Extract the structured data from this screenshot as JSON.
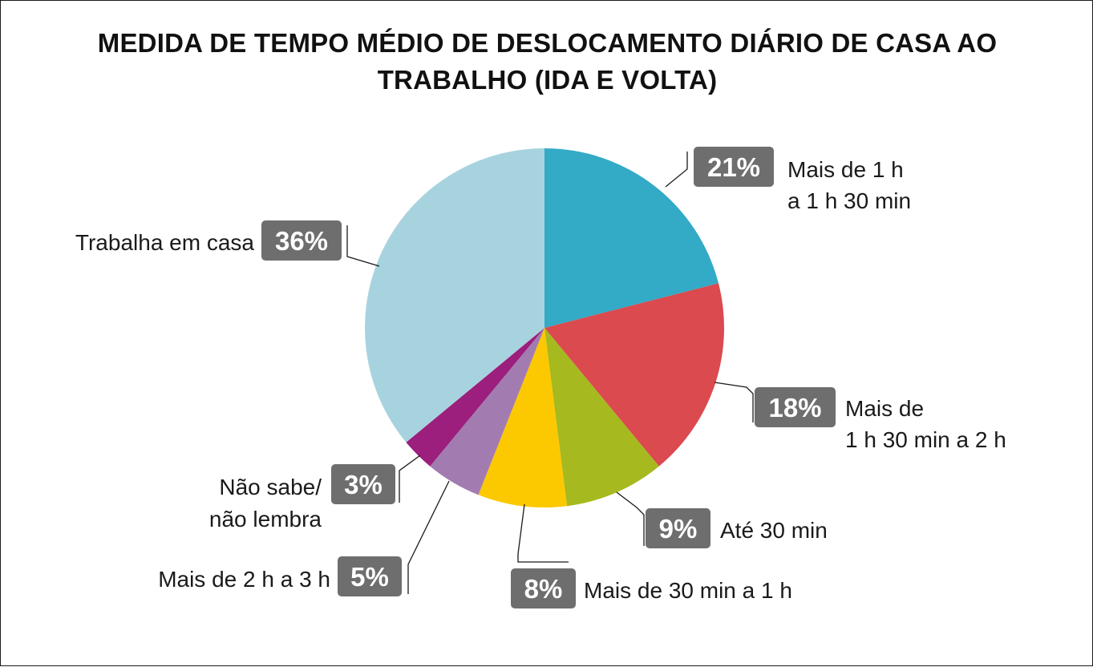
{
  "chart_data": {
    "type": "pie",
    "title_line1": "MEDIDA DE TEMPO MÉDIO DE DESLOCAMENTO DIÁRIO DE CASA AO",
    "title_line2": "TRABALHO (IDA E VOLTA)",
    "slices": [
      {
        "pct_label": "21%",
        "value": 21,
        "label_lines": [
          "Mais de 1 h",
          "a 1 h 30 min"
        ],
        "color": "#33aac6"
      },
      {
        "pct_label": "18%",
        "value": 18,
        "label_lines": [
          "Mais de",
          "1 h 30 min a 2 h"
        ],
        "color": "#da4a4f"
      },
      {
        "pct_label": "9%",
        "value": 9,
        "label_lines": [
          "Até 30 min"
        ],
        "color": "#a6b91e"
      },
      {
        "pct_label": "8%",
        "value": 8,
        "label_lines": [
          "Mais de 30 min a 1 h"
        ],
        "color": "#fcc800"
      },
      {
        "pct_label": "5%",
        "value": 5,
        "label_lines": [
          "Mais de 2 h a 3 h"
        ],
        "color": "#a27cb0"
      },
      {
        "pct_label": "3%",
        "value": 3,
        "label_lines": [
          "Não sabe/",
          "não lembra"
        ],
        "color": "#9c1e7d"
      },
      {
        "pct_label": "36%",
        "value": 36,
        "label_lines": [
          "Trabalha em casa"
        ],
        "color": "#a7d3df"
      }
    ],
    "badge_color": "#6f6e6e"
  }
}
